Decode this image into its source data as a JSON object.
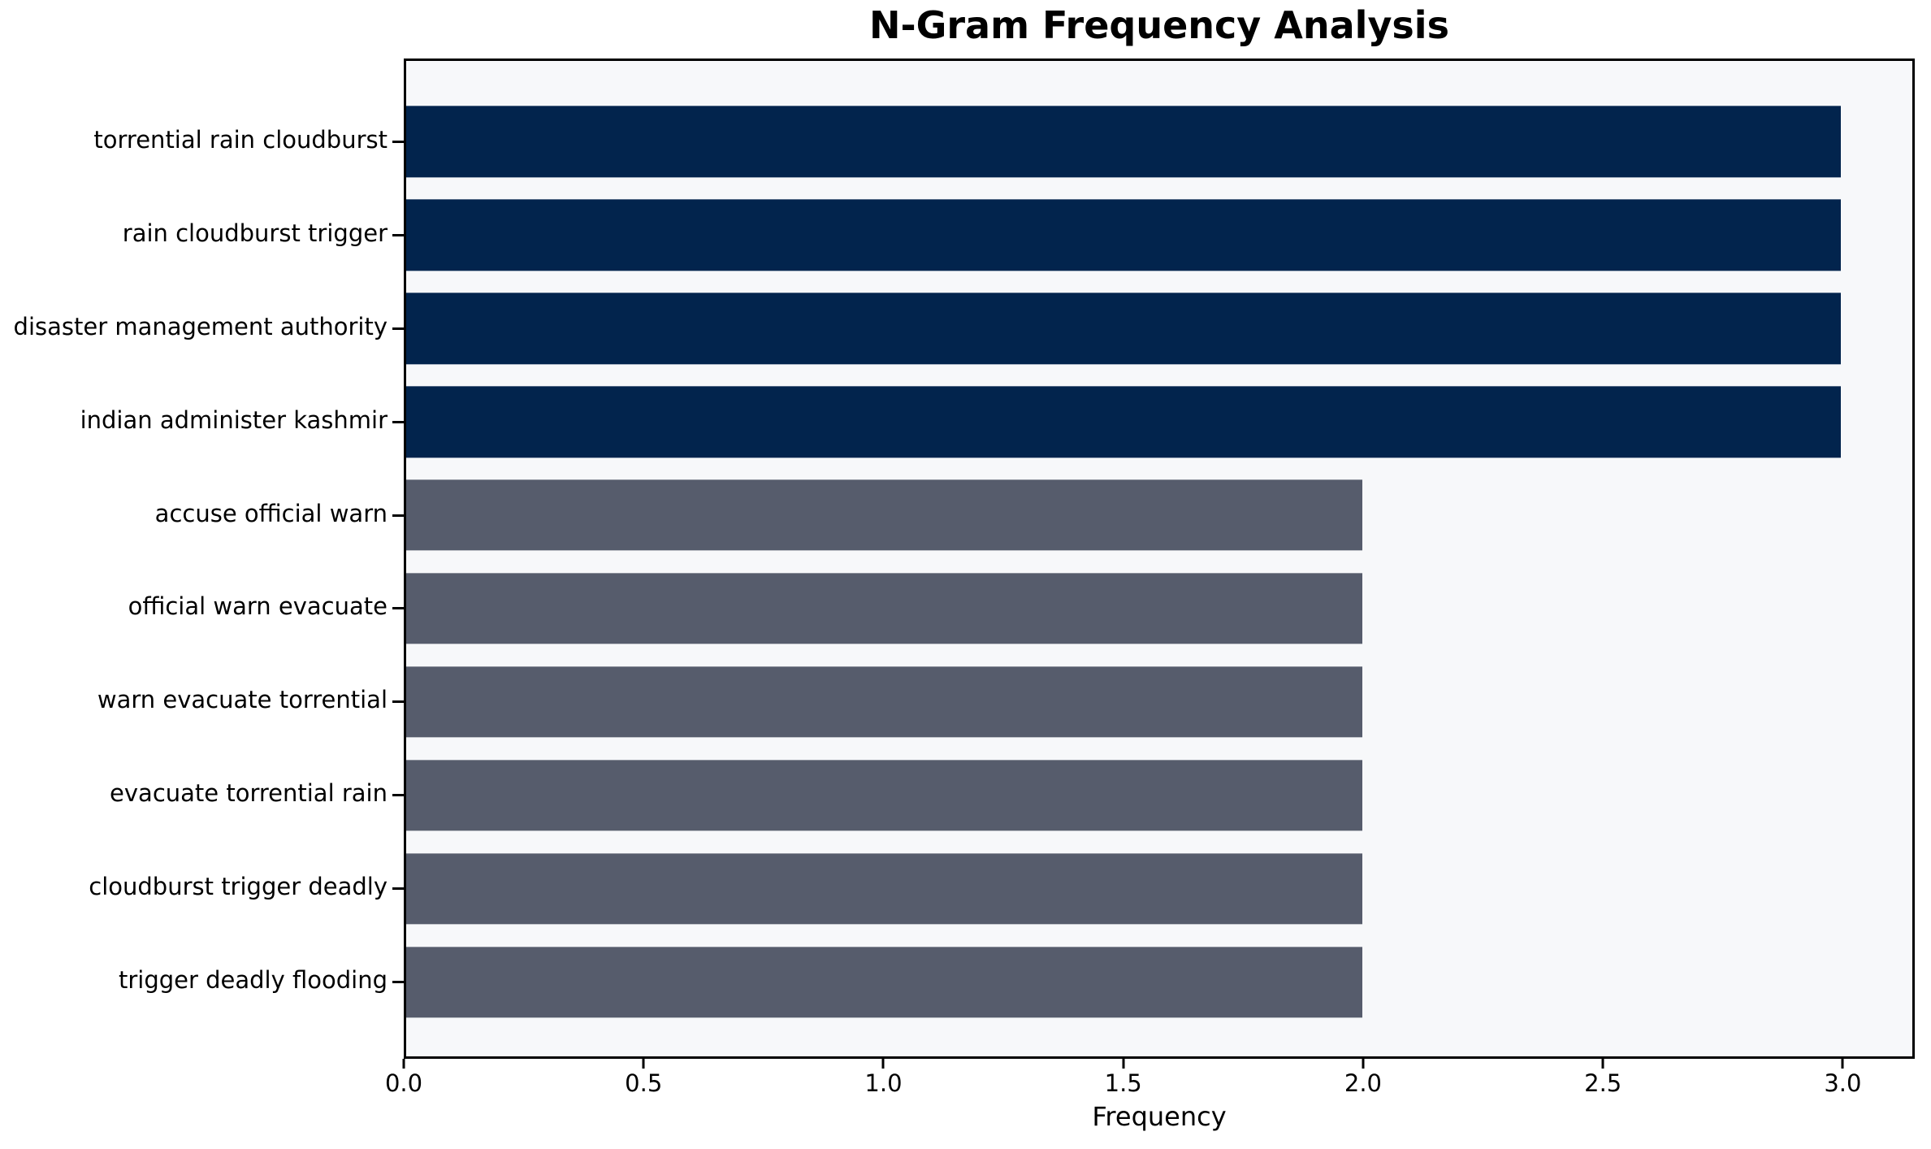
{
  "chart_data": {
    "type": "bar",
    "orientation": "horizontal",
    "title": "N-Gram Frequency Analysis",
    "xlabel": "Frequency",
    "ylabel": "",
    "categories": [
      "torrential rain cloudburst",
      "rain cloudburst trigger",
      "disaster management authority",
      "indian administer kashmir",
      "accuse official warn",
      "official warn evacuate",
      "warn evacuate torrential",
      "evacuate torrential rain",
      "cloudburst trigger deadly",
      "trigger deadly flooding"
    ],
    "values": [
      3,
      3,
      3,
      3,
      2,
      2,
      2,
      2,
      2,
      2
    ],
    "bar_colors": [
      "#02244D",
      "#02244D",
      "#02244D",
      "#02244D",
      "#565C6C",
      "#565C6C",
      "#565C6C",
      "#565C6C",
      "#565C6C",
      "#565C6C"
    ],
    "xlim": [
      0,
      3.15
    ],
    "xticks": [
      0.0,
      0.5,
      1.0,
      1.5,
      2.0,
      2.5,
      3.0
    ],
    "xtick_labels": [
      "0.0",
      "0.5",
      "1.0",
      "1.5",
      "2.0",
      "2.5",
      "3.0"
    ],
    "grid": false,
    "legend": null,
    "plot_background": "#F7F8FA",
    "figure_background": "#FFFFFF",
    "spine_color": "#000000"
  }
}
